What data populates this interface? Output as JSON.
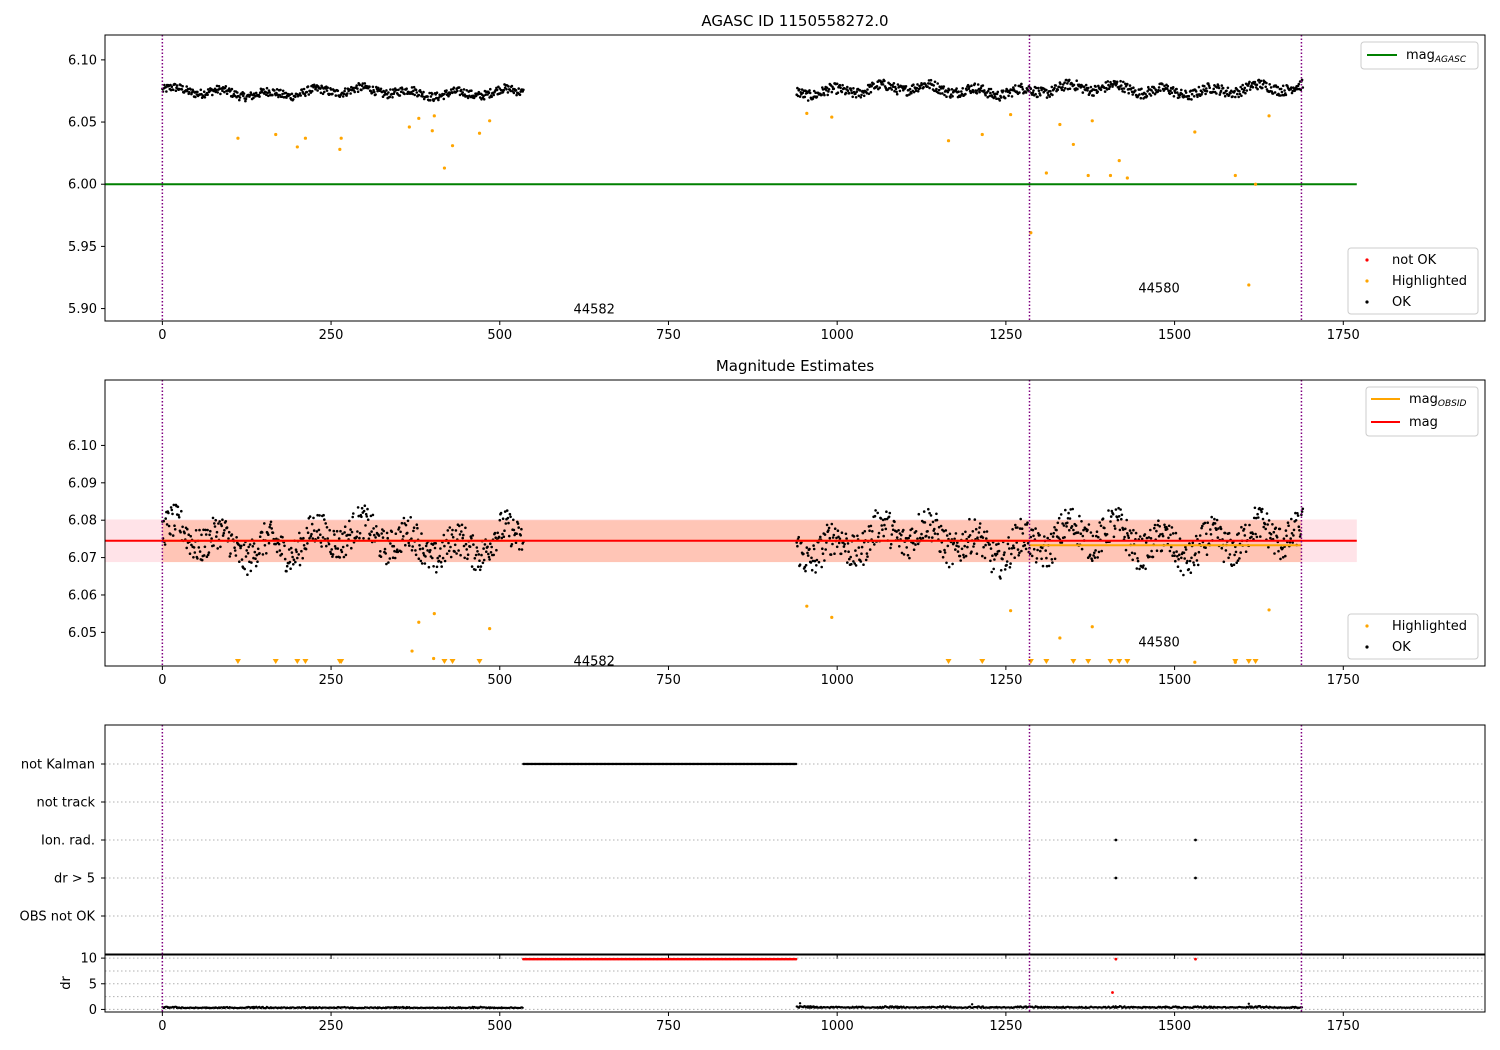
{
  "figure": {
    "title_top": "AGASC ID 1150558272.0",
    "title_middle": "Magnitude Estimates"
  },
  "colors": {
    "ok": "#000000",
    "highlighted": "#ffa500",
    "not_ok": "#ff0000",
    "mag_agasc": "#008000",
    "mag_obsid": "#ffa500",
    "mag": "#ff0000",
    "obsid_divider": "#800080",
    "band_fill_mag": "#ffc0cb",
    "band_fill_obsid": "#ffa07a"
  },
  "chart_data": [
    {
      "type": "scatter",
      "title": "AGASC ID 1150558272.0",
      "xlim": [
        -85,
        1960
      ],
      "ylim": [
        5.89,
        6.12
      ],
      "xticks": [
        0,
        250,
        500,
        750,
        1000,
        1250,
        1500,
        1750
      ],
      "yticks": [
        5.9,
        5.95,
        6.0,
        6.05,
        6.1
      ],
      "ytick_labels": [
        "5.90",
        "5.95",
        "6.00",
        "6.05",
        "6.10"
      ],
      "obsid_dividers": [
        0,
        1285,
        1688
      ],
      "obsid_labels": [
        {
          "text": "44582",
          "x": 640,
          "y": 5.9
        },
        {
          "text": "44580",
          "x": 1477,
          "y": 5.917
        }
      ],
      "lines": [
        {
          "name": "mag",
          "sub": "AGASC",
          "color": "#008000",
          "y": 6.0,
          "x": [
            -85,
            1770
          ]
        }
      ],
      "line_legend_position": "top-right",
      "point_legend": [
        "not OK",
        "Highlighted",
        "OK"
      ],
      "point_legend_position": "lower-right",
      "ok_segments": [
        {
          "x0": 0,
          "x1": 535,
          "base": 6.074,
          "spread": 0.005
        },
        {
          "x0": 940,
          "x1": 1690,
          "base": 6.076,
          "spread": 0.006
        }
      ],
      "highlighted": [
        {
          "x": 112,
          "y": 6.037
        },
        {
          "x": 168,
          "y": 6.04
        },
        {
          "x": 200,
          "y": 6.03
        },
        {
          "x": 212,
          "y": 6.037
        },
        {
          "x": 263,
          "y": 6.028
        },
        {
          "x": 265,
          "y": 6.037
        },
        {
          "x": 366,
          "y": 6.046
        },
        {
          "x": 380,
          "y": 6.053
        },
        {
          "x": 400,
          "y": 6.043
        },
        {
          "x": 403,
          "y": 6.055
        },
        {
          "x": 418,
          "y": 6.013
        },
        {
          "x": 430,
          "y": 6.031
        },
        {
          "x": 470,
          "y": 6.041
        },
        {
          "x": 485,
          "y": 6.051
        },
        {
          "x": 955,
          "y": 6.057
        },
        {
          "x": 992,
          "y": 6.054
        },
        {
          "x": 1165,
          "y": 6.035
        },
        {
          "x": 1215,
          "y": 6.04
        },
        {
          "x": 1257,
          "y": 6.056
        },
        {
          "x": 1287,
          "y": 5.961
        },
        {
          "x": 1310,
          "y": 6.009
        },
        {
          "x": 1330,
          "y": 6.048
        },
        {
          "x": 1350,
          "y": 6.032
        },
        {
          "x": 1372,
          "y": 6.007
        },
        {
          "x": 1378,
          "y": 6.051
        },
        {
          "x": 1405,
          "y": 6.007
        },
        {
          "x": 1418,
          "y": 6.019
        },
        {
          "x": 1430,
          "y": 6.005
        },
        {
          "x": 1530,
          "y": 6.042
        },
        {
          "x": 1590,
          "y": 6.007
        },
        {
          "x": 1610,
          "y": 5.919
        },
        {
          "x": 1620,
          "y": 6.0
        },
        {
          "x": 1640,
          "y": 6.055
        }
      ]
    },
    {
      "type": "scatter",
      "title": "Magnitude Estimates",
      "xlim": [
        -85,
        1960
      ],
      "ylim": [
        6.041,
        6.1175
      ],
      "xticks": [
        0,
        250,
        500,
        750,
        1000,
        1250,
        1500,
        1750
      ],
      "yticks": [
        6.05,
        6.06,
        6.07,
        6.08,
        6.09,
        6.1
      ],
      "ytick_labels": [
        "6.05",
        "6.06",
        "6.07",
        "6.08",
        "6.09",
        "6.10"
      ],
      "obsid_dividers": [
        0,
        1285,
        1688
      ],
      "obsid_labels": [
        {
          "text": "44582",
          "x": 640,
          "y": 6.0425
        },
        {
          "text": "44580",
          "x": 1477,
          "y": 6.0475
        }
      ],
      "bands": [
        {
          "x0": -85,
          "x1": 1770,
          "y0": 6.0688,
          "y1": 6.0802,
          "color": "#ffc0cb"
        },
        {
          "x0": 0,
          "x1": 1688,
          "y0": 6.0688,
          "y1": 6.08,
          "color": "#ffa07a"
        }
      ],
      "lines": [
        {
          "name": "mag",
          "sub": "OBSID",
          "color": "#ffa500",
          "segments": [
            [
              0,
              535,
              6.0745
            ],
            [
              940,
              1285,
              6.0745
            ],
            [
              1285,
              1688,
              6.0733
            ]
          ]
        },
        {
          "name": "mag",
          "sub": "",
          "color": "#ff0000",
          "y": 6.0745,
          "x": [
            -85,
            1770
          ]
        }
      ],
      "line_legend_position": "top-right",
      "point_legend": [
        "Highlighted",
        "OK"
      ],
      "point_legend_position": "lower-right",
      "ok_segments": [
        {
          "x0": 0,
          "x1": 535,
          "base": 6.0745,
          "spread": 0.0065
        },
        {
          "x0": 940,
          "x1": 1690,
          "base": 6.0745,
          "spread": 0.0068
        }
      ],
      "highlighted": [
        {
          "x": 370,
          "y": 6.045
        },
        {
          "x": 380,
          "y": 6.0527
        },
        {
          "x": 402,
          "y": 6.043
        },
        {
          "x": 403,
          "y": 6.055
        },
        {
          "x": 485,
          "y": 6.051
        },
        {
          "x": 955,
          "y": 6.057
        },
        {
          "x": 992,
          "y": 6.054
        },
        {
          "x": 1257,
          "y": 6.0558
        },
        {
          "x": 1330,
          "y": 6.0485
        },
        {
          "x": 1378,
          "y": 6.0515
        },
        {
          "x": 1530,
          "y": 6.042
        },
        {
          "x": 1590,
          "y": 6.042
        },
        {
          "x": 1640,
          "y": 6.056
        }
      ],
      "clipped_low_markers_x": [
        112,
        168,
        200,
        212,
        263,
        265,
        418,
        430,
        470,
        1165,
        1215,
        1287,
        1310,
        1350,
        1372,
        1405,
        1418,
        1430,
        1590,
        1610,
        1620
      ]
    },
    {
      "type": "scatter",
      "title": "",
      "xlim": [
        -85,
        1960
      ],
      "flag_rows": [
        "not Kalman",
        "not track",
        "Ion. rad.",
        "dr > 5",
        "OBS not OK"
      ],
      "obsid_dividers": [
        0,
        1285,
        1688
      ],
      "flags": [
        {
          "row": "not Kalman",
          "x0": 535,
          "x1": 940
        },
        {
          "row": "Ion. rad.",
          "points": [
            1413,
            1531
          ]
        },
        {
          "row": "dr > 5",
          "points": [
            1413,
            1531
          ]
        }
      ]
    },
    {
      "type": "scatter",
      "title": "",
      "xlim": [
        -85,
        1960
      ],
      "ylim": [
        -0.5,
        10.8
      ],
      "xticks": [
        0,
        250,
        500,
        750,
        1000,
        1250,
        1500,
        1750
      ],
      "yticks": [
        0,
        5,
        10
      ],
      "ylabel": "dr",
      "obsid_dividers": [
        0,
        1285,
        1688
      ],
      "ok_segments": [
        {
          "x0": 0,
          "x1": 535,
          "base": 0.25,
          "spread": 0.2
        },
        {
          "x0": 940,
          "x1": 1690,
          "base": 0.3,
          "spread": 0.25
        }
      ],
      "not_ok_line": {
        "x0": 535,
        "x1": 940,
        "y": 9.8
      },
      "not_ok_points": [
        {
          "x": 1413,
          "y": 9.8
        },
        {
          "x": 1531,
          "y": 9.8
        },
        {
          "x": 1408,
          "y": 3.3
        }
      ]
    }
  ]
}
